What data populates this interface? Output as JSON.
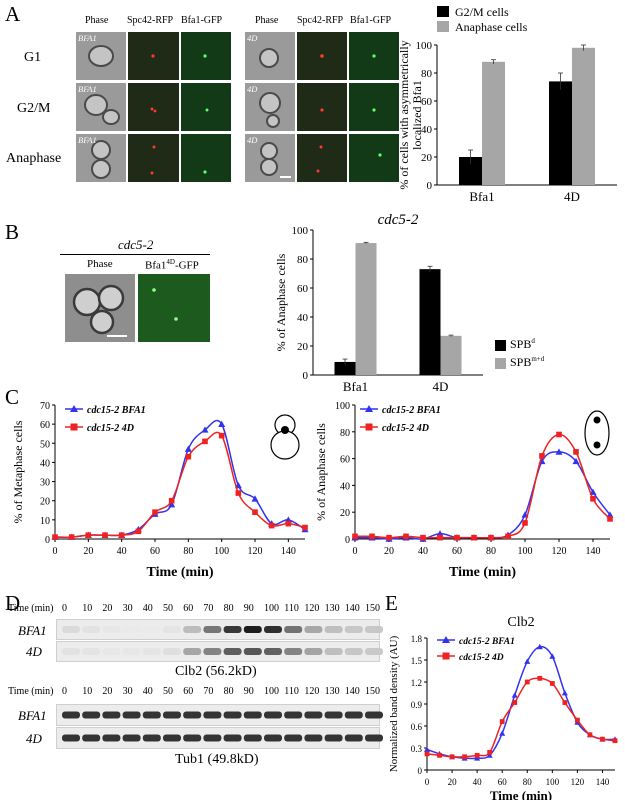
{
  "panels": {
    "A": "A",
    "B": "B",
    "C": "C",
    "D": "D",
    "E": "E"
  },
  "panelA": {
    "col_headers": [
      "Phase",
      "Spc42-RFP",
      "Bfa1-GFP"
    ],
    "row_labels": [
      "G1",
      "G2/M",
      "Anaphase"
    ],
    "left_strain": "BFA1",
    "right_strain": "4D"
  },
  "panelB": {
    "strain": "cdc5-2",
    "col_headers": [
      "Phase",
      "Bfa1"
    ],
    "gfp_sup": "4D",
    "gfp_suffix": "-GFP"
  },
  "panelD": {
    "time_label": "Time (min)",
    "times": [
      "0",
      "10",
      "20",
      "30",
      "40",
      "50",
      "60",
      "70",
      "80",
      "90",
      "100",
      "110",
      "120",
      "130",
      "140",
      "150"
    ],
    "rows": [
      "BFA1",
      "4D"
    ],
    "clb2_caption": "Clb2 (56.2kD)",
    "tub1_caption": "Tub1 (49.8kD)"
  },
  "chart_data": [
    {
      "id": "A",
      "type": "bar",
      "categories": [
        "Bfa1",
        "4D"
      ],
      "series": [
        {
          "name": "G2/M cells",
          "values": [
            20,
            74
          ],
          "errors": [
            5,
            6
          ],
          "color": "#000000"
        },
        {
          "name": "Anaphase cells",
          "values": [
            88,
            98
          ],
          "errors": [
            1.5,
            2
          ],
          "color": "#a6a6a6"
        }
      ],
      "ylabel": "% of cells with asymmetrically localized Bfa1",
      "ylim": [
        0,
        100
      ],
      "yticks": [
        0,
        20,
        40,
        60,
        80,
        100
      ],
      "legend": "top"
    },
    {
      "id": "B",
      "type": "bar",
      "title": "cdc5-2",
      "categories": [
        "Bfa1",
        "4D"
      ],
      "series": [
        {
          "name": "SPB",
          "sup": "d",
          "values": [
            9,
            73
          ],
          "errors": [
            2,
            2
          ],
          "color": "#000000"
        },
        {
          "name": "SPB",
          "sup": "m+d",
          "values": [
            91,
            27
          ],
          "errors": [
            0.5,
            0.5
          ],
          "color": "#a6a6a6"
        }
      ],
      "ylabel": "% of Anaphase cells",
      "ylim": [
        0,
        100
      ],
      "yticks": [
        0,
        20,
        40,
        60,
        80,
        100
      ],
      "legend": "right"
    },
    {
      "id": "C1",
      "type": "line",
      "x": [
        0,
        10,
        20,
        30,
        40,
        50,
        60,
        70,
        80,
        90,
        100,
        110,
        120,
        130,
        140,
        150
      ],
      "series": [
        {
          "name": "cdc15-2 BFA1",
          "values": [
            1,
            1,
            2,
            2,
            2,
            5,
            13,
            18,
            47,
            57,
            60,
            28,
            21,
            8,
            10,
            5
          ],
          "color": "#3333ee",
          "marker": "triangle"
        },
        {
          "name": "cdc15-2 4D",
          "values": [
            1,
            1,
            2,
            2,
            2,
            4,
            14,
            20,
            43,
            51,
            54,
            24,
            14,
            7,
            8,
            6
          ],
          "color": "#ee2222",
          "marker": "square"
        }
      ],
      "xlabel": "Time (min)",
      "ylabel": "% of Metaphase cells",
      "xlim": [
        0,
        150
      ],
      "ylim": [
        0,
        70
      ],
      "xticks": [
        0,
        20,
        40,
        60,
        80,
        100,
        120,
        140
      ],
      "yticks": [
        0,
        10,
        20,
        30,
        40,
        50,
        60,
        70
      ]
    },
    {
      "id": "C2",
      "type": "line",
      "x": [
        0,
        10,
        20,
        30,
        40,
        50,
        60,
        70,
        80,
        90,
        100,
        110,
        120,
        130,
        140,
        150
      ],
      "series": [
        {
          "name": "cdc15-2 BFA1",
          "values": [
            1,
            1,
            0,
            1,
            0,
            4,
            1,
            1,
            1,
            3,
            18,
            58,
            65,
            58,
            35,
            18
          ],
          "color": "#3333ee",
          "marker": "triangle"
        },
        {
          "name": "cdc15-2 4D",
          "values": [
            2,
            2,
            1,
            2,
            1,
            1,
            1,
            1,
            1,
            2,
            12,
            62,
            78,
            65,
            30,
            15
          ],
          "color": "#ee2222",
          "marker": "square"
        }
      ],
      "xlabel": "Time (min)",
      "ylabel": "% of Anaphase cells",
      "xlim": [
        0,
        150
      ],
      "ylim": [
        0,
        100
      ],
      "xticks": [
        0,
        20,
        40,
        60,
        80,
        100,
        120,
        140
      ],
      "yticks": [
        0,
        20,
        40,
        60,
        80,
        100
      ]
    },
    {
      "id": "E",
      "type": "line",
      "title": "Clb2",
      "x": [
        0,
        10,
        20,
        30,
        40,
        50,
        60,
        70,
        80,
        90,
        100,
        110,
        120,
        130,
        140,
        150
      ],
      "series": [
        {
          "name": "cdc15-2 BFA1",
          "values": [
            0.28,
            0.22,
            0.18,
            0.16,
            0.16,
            0.2,
            0.5,
            1.02,
            1.48,
            1.68,
            1.55,
            1.05,
            0.65,
            0.48,
            0.42,
            0.42
          ],
          "color": "#3333ee",
          "marker": "triangle"
        },
        {
          "name": "cdc15-2 4D",
          "values": [
            0.22,
            0.2,
            0.18,
            0.18,
            0.2,
            0.24,
            0.66,
            0.92,
            1.2,
            1.25,
            1.18,
            0.92,
            0.68,
            0.48,
            0.42,
            0.4
          ],
          "color": "#ee2222",
          "marker": "square"
        }
      ],
      "xlabel": "Time (min)",
      "ylabel": "Normalized band density (AU)",
      "xlim": [
        0,
        150
      ],
      "ylim": [
        0,
        1.8
      ],
      "xticks": [
        0,
        20,
        40,
        60,
        80,
        100,
        120,
        140
      ],
      "yticks": [
        0,
        0.3,
        0.6,
        0.9,
        1.2,
        1.5,
        1.8
      ]
    }
  ]
}
